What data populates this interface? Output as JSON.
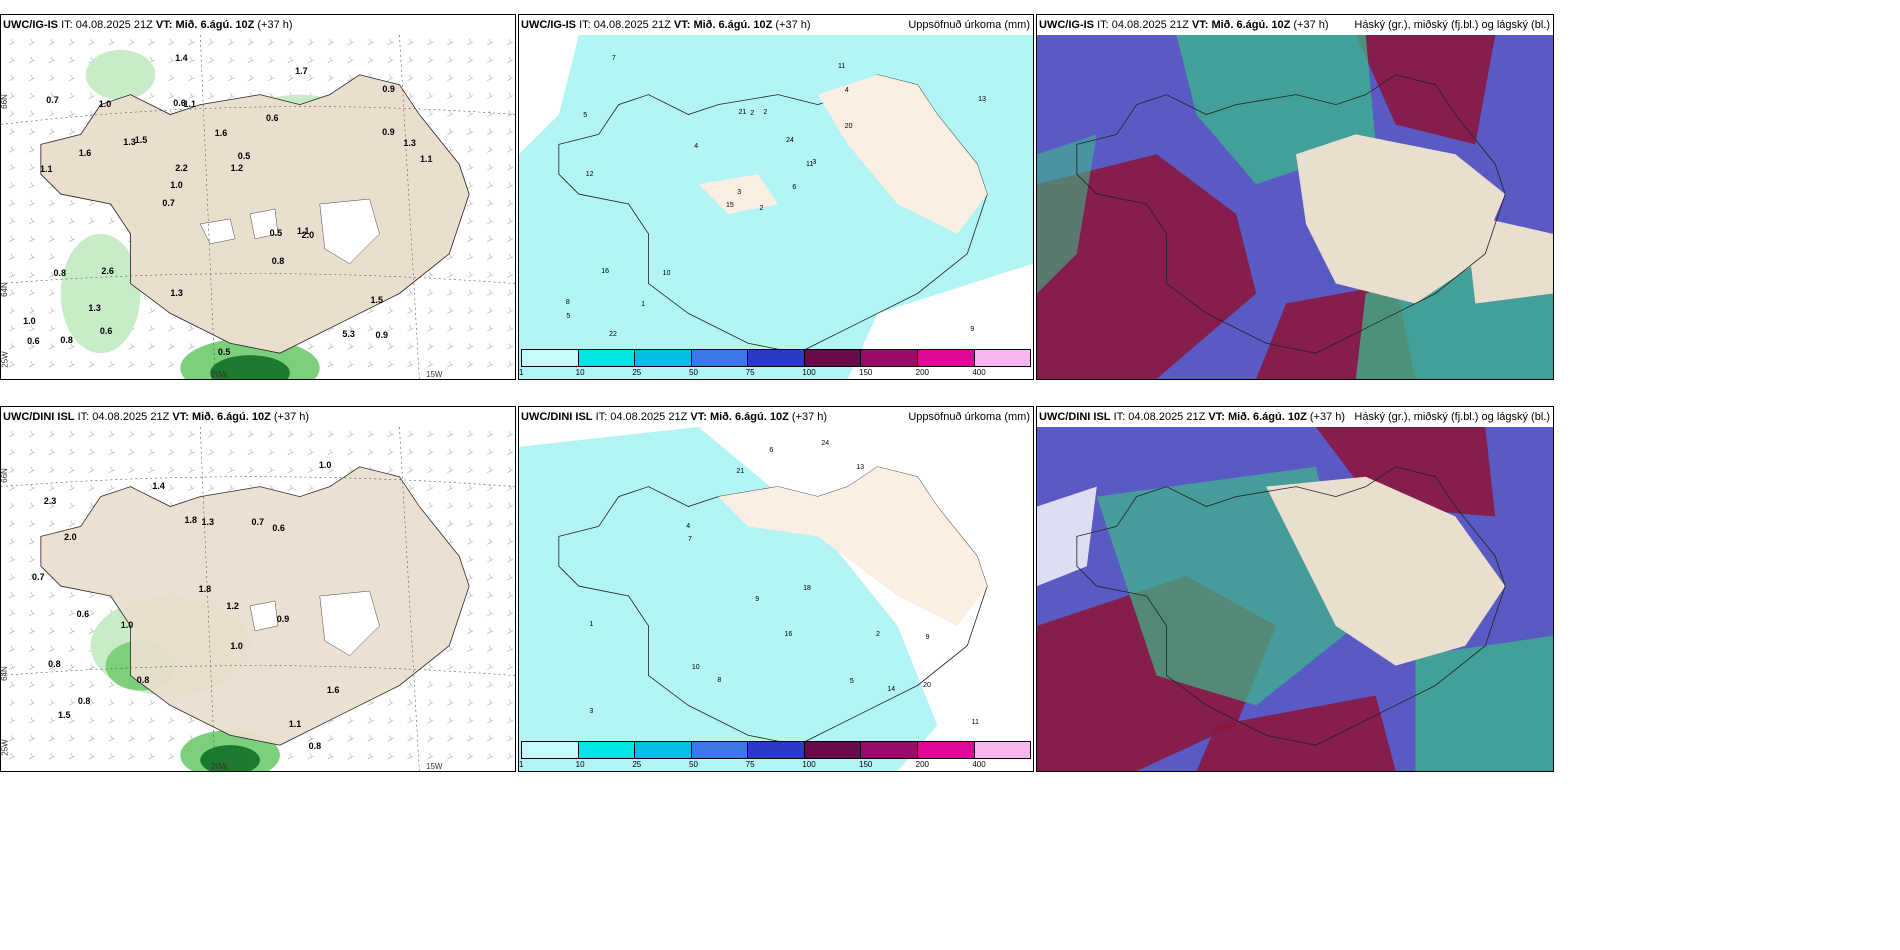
{
  "panels": [
    {
      "id": "p1",
      "model": "UWC/IG-IS",
      "it_label": "IT:",
      "it": "04.08.2025 21Z",
      "vt_label": "VT: Mið. 6.ágú. 10Z",
      "lead": "(+37 h)",
      "product": ""
    },
    {
      "id": "p2",
      "model": "UWC/IG-IS",
      "it_label": "IT:",
      "it": "04.08.2025 21Z",
      "vt_label": "VT: Mið. 6.ágú. 10Z",
      "lead": "(+37 h)",
      "product": "Uppsöfnuð úrkoma (mm)"
    },
    {
      "id": "p3",
      "model": "UWC/IG-IS",
      "it_label": "IT:",
      "it": "04.08.2025 21Z",
      "vt_label": "VT: Mið. 6.ágú. 10Z",
      "lead": "(+37 h)",
      "product": "Háský (gr.), miðský (fj.bl.) og lágský (bl.)"
    },
    {
      "id": "p4",
      "model": "UWC/DINI ISL",
      "it_label": "IT:",
      "it": "04.08.2025 21Z",
      "vt_label": "VT: Mið. 6.ágú. 10Z",
      "lead": "(+37 h)",
      "product": ""
    },
    {
      "id": "p5",
      "model": "UWC/DINI ISL",
      "it_label": "IT:",
      "it": "04.08.2025 21Z",
      "vt_label": "VT: Mið. 6.ágú. 10Z",
      "lead": "(+37 h)",
      "product": "Uppsöfnuð úrkoma (mm)"
    },
    {
      "id": "p6",
      "model": "UWC/DINI ISL",
      "it_label": "IT:",
      "it": "04.08.2025 21Z",
      "vt_label": "VT: Mið. 6.ágú. 10Z",
      "lead": "(+37 h)",
      "product": "Háský (gr.), miðský (fj.bl.) og lágský (bl.)"
    }
  ],
  "legend": {
    "ticks": [
      "1",
      "10",
      "25",
      "50",
      "75",
      "100",
      "150",
      "200",
      "400"
    ],
    "colors": [
      "#c6fbfb",
      "#00e5e5",
      "#00bfe6",
      "#3a78e6",
      "#2a3ac8",
      "#6a0a4a",
      "#9a0a6a",
      "#e0089a",
      "#f5b6f0"
    ]
  },
  "axis_labels": {
    "lat66": "66N",
    "lat64": "64N",
    "lon25": "25W",
    "lon20": "20W",
    "lon15": "15W"
  },
  "wind_values_top": [
    "0.9",
    "1.1",
    "0.9",
    "0.7",
    "0.6",
    "0.8",
    "0.6",
    "1.6",
    "0.8",
    "1.5",
    "1.0",
    "1.3",
    "1.1",
    "0.5",
    "2.0",
    "0.7",
    "1.4",
    "1.1",
    "0.5",
    "0.9",
    "1.0",
    "1.3",
    "2.2",
    "1.0",
    "1.7",
    "2.6",
    "5.3",
    "1.5",
    "1.1",
    "0.5",
    "1.3",
    "1.6",
    "0.8",
    "0.6",
    "1.3",
    "1.2",
    "0.6"
  ],
  "wind_values_bottom": [
    "0.8",
    "0.6",
    "1.0",
    "2.3",
    "1.6",
    "2.0",
    "0.8",
    "1.0",
    "0.6",
    "1.8",
    "0.7",
    "1.1",
    "0.8",
    "1.4",
    "1.2",
    "0.8",
    "0.9",
    "1.8",
    "0.7",
    "1.5",
    "1.0",
    "1.3"
  ],
  "precip_values_top": [
    "2",
    "5",
    "3",
    "8",
    "11",
    "10",
    "11",
    "2",
    "4",
    "6",
    "7",
    "9",
    "12",
    "13",
    "15",
    "20",
    "22",
    "21",
    "24",
    "16",
    "4",
    "5",
    "1",
    "2",
    "3"
  ],
  "precip_values_bottom": [
    "3",
    "9",
    "18",
    "16",
    "21",
    "24",
    "20",
    "13",
    "14",
    "10",
    "11",
    "7",
    "8",
    "6",
    "5",
    "4",
    "2",
    "1",
    "9"
  ],
  "colors": {
    "land": "#eadfcf",
    "ocean": "#ffffff",
    "green_light": "#c8ecc8",
    "green_mid": "#7cd07c",
    "green_dark": "#1c7a30",
    "cyan": "#b3f4f4",
    "cloud_blue": "#5555c8",
    "cloud_red": "#8a1640",
    "cloud_green": "#3cb88a"
  }
}
